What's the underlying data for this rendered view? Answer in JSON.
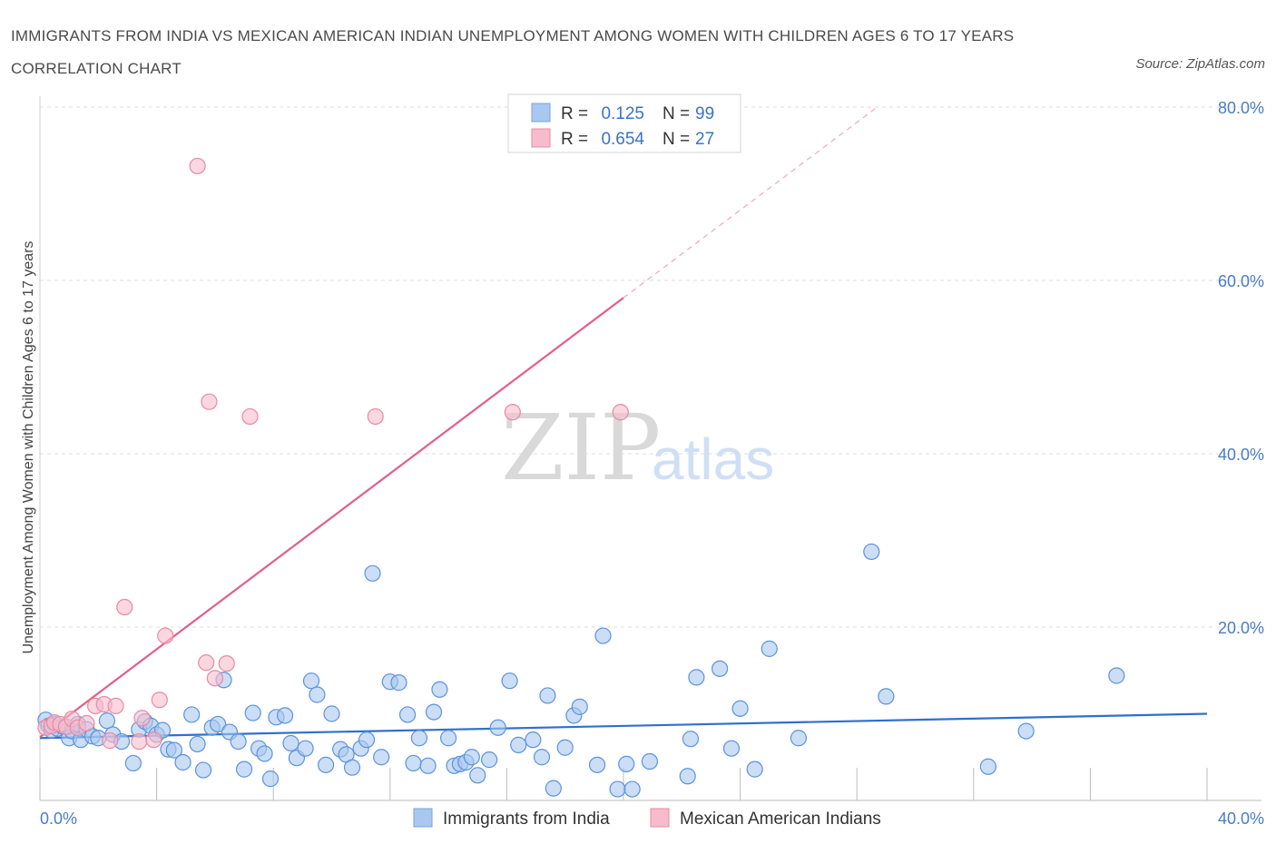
{
  "title": "IMMIGRANTS FROM INDIA VS MEXICAN AMERICAN INDIAN UNEMPLOYMENT AMONG WOMEN WITH CHILDREN AGES 6 TO 17 YEARS CORRELATION CHART",
  "source": "Source: ZipAtlas.com",
  "watermark": {
    "zip": "ZIP",
    "atlas": "atlas"
  },
  "legend": {
    "rows": [
      {
        "r_label": "R =",
        "r_value": "0.125",
        "n_label": "N =",
        "n_value": "99",
        "color": "#a9c8f0",
        "stroke": "#7aa3dc"
      },
      {
        "r_label": "R =",
        "r_value": "0.654",
        "n_label": "N =",
        "n_value": "27",
        "color": "#f6bccd",
        "stroke": "#e88aa6"
      }
    ]
  },
  "bottom_legend": [
    {
      "label": "Immigrants from India",
      "color": "#a9c8f0",
      "stroke": "#7aa3dc"
    },
    {
      "label": "Mexican American Indians",
      "color": "#f6bccd",
      "stroke": "#e88aa6"
    }
  ],
  "chart_data": {
    "type": "scatter",
    "xlabel": "",
    "ylabel": "Unemployment Among Women with Children Ages 6 to 17 years",
    "xlim": [
      0,
      40
    ],
    "ylim": [
      0,
      80
    ],
    "x_tick_labels": [
      "0.0%",
      "40.0%"
    ],
    "y_ticks": [
      20,
      40,
      60,
      80
    ],
    "y_tick_labels": [
      "20.0%",
      "40.0%",
      "60.0%",
      "80.0%"
    ],
    "grid": true,
    "series": [
      {
        "name": "Immigrants from India",
        "color": "#5b93dc",
        "fill": "#a9c8f0",
        "trend": {
          "x": [
            0,
            40
          ],
          "y": [
            7.2,
            10.0
          ],
          "color": "#2f6fcf"
        },
        "points": [
          [
            0.2,
            9.3
          ],
          [
            0.3,
            8.6
          ],
          [
            0.4,
            8.1
          ],
          [
            0.5,
            8.8
          ],
          [
            0.6,
            8.3
          ],
          [
            0.8,
            8.5
          ],
          [
            1.0,
            7.2
          ],
          [
            1.1,
            8.0
          ],
          [
            1.3,
            8.8
          ],
          [
            1.4,
            7.0
          ],
          [
            1.6,
            8.2
          ],
          [
            1.8,
            7.4
          ],
          [
            2.0,
            7.2
          ],
          [
            2.3,
            9.2
          ],
          [
            2.5,
            7.6
          ],
          [
            2.8,
            6.8
          ],
          [
            3.2,
            4.3
          ],
          [
            3.4,
            8.2
          ],
          [
            3.6,
            9.1
          ],
          [
            3.8,
            8.6
          ],
          [
            4.0,
            7.6
          ],
          [
            4.2,
            8.1
          ],
          [
            4.4,
            5.9
          ],
          [
            4.6,
            5.8
          ],
          [
            4.9,
            4.4
          ],
          [
            5.2,
            9.9
          ],
          [
            5.4,
            6.5
          ],
          [
            5.6,
            3.5
          ],
          [
            5.9,
            8.4
          ],
          [
            6.1,
            8.8
          ],
          [
            6.3,
            13.9
          ],
          [
            6.5,
            7.9
          ],
          [
            6.8,
            6.8
          ],
          [
            7.0,
            3.6
          ],
          [
            7.3,
            10.1
          ],
          [
            7.5,
            6.0
          ],
          [
            7.7,
            5.4
          ],
          [
            7.9,
            2.5
          ],
          [
            8.1,
            9.6
          ],
          [
            8.4,
            9.8
          ],
          [
            8.6,
            6.6
          ],
          [
            8.8,
            4.9
          ],
          [
            9.1,
            6.0
          ],
          [
            9.3,
            13.8
          ],
          [
            9.5,
            12.2
          ],
          [
            9.8,
            4.1
          ],
          [
            10.0,
            10.0
          ],
          [
            10.3,
            5.9
          ],
          [
            10.5,
            5.3
          ],
          [
            10.7,
            3.8
          ],
          [
            11.0,
            6.0
          ],
          [
            11.2,
            7.0
          ],
          [
            11.4,
            26.2
          ],
          [
            11.7,
            5.0
          ],
          [
            12.0,
            13.7
          ],
          [
            12.3,
            13.6
          ],
          [
            12.6,
            9.9
          ],
          [
            12.8,
            4.3
          ],
          [
            13.0,
            7.2
          ],
          [
            13.3,
            4.0
          ],
          [
            13.5,
            10.2
          ],
          [
            13.7,
            12.8
          ],
          [
            14.0,
            7.2
          ],
          [
            14.2,
            4.0
          ],
          [
            14.4,
            4.2
          ],
          [
            14.6,
            4.4
          ],
          [
            14.8,
            5.0
          ],
          [
            15.0,
            2.9
          ],
          [
            15.4,
            4.7
          ],
          [
            15.7,
            8.4
          ],
          [
            16.1,
            13.8
          ],
          [
            16.4,
            6.4
          ],
          [
            16.9,
            7.0
          ],
          [
            17.2,
            5.0
          ],
          [
            17.4,
            12.1
          ],
          [
            17.6,
            1.4
          ],
          [
            18.0,
            6.1
          ],
          [
            18.3,
            9.8
          ],
          [
            18.5,
            10.8
          ],
          [
            19.1,
            4.1
          ],
          [
            19.3,
            19.0
          ],
          [
            19.8,
            1.3
          ],
          [
            20.1,
            4.2
          ],
          [
            20.3,
            1.3
          ],
          [
            20.9,
            4.5
          ],
          [
            22.2,
            2.8
          ],
          [
            22.3,
            7.1
          ],
          [
            22.5,
            14.2
          ],
          [
            23.3,
            15.2
          ],
          [
            23.7,
            6.0
          ],
          [
            24.0,
            10.6
          ],
          [
            24.5,
            3.6
          ],
          [
            25.0,
            17.5
          ],
          [
            26.0,
            7.2
          ],
          [
            28.5,
            28.7
          ],
          [
            29.0,
            12.0
          ],
          [
            32.5,
            3.9
          ],
          [
            33.8,
            8.0
          ],
          [
            36.9,
            14.4
          ]
        ]
      },
      {
        "name": "Mexican American Indians",
        "color": "#e88aa6",
        "fill": "#f6bccd",
        "trend": {
          "x": [
            0,
            20
          ],
          "y": [
            7.3,
            58.0
          ],
          "color": "#e05f8a",
          "extend_x": [
            20,
            28.7
          ],
          "extend_y": [
            58.0,
            80.0
          ]
        },
        "points": [
          [
            0.2,
            8.4
          ],
          [
            0.4,
            8.6
          ],
          [
            0.5,
            9.0
          ],
          [
            0.7,
            8.8
          ],
          [
            0.9,
            8.5
          ],
          [
            1.1,
            9.4
          ],
          [
            1.3,
            8.4
          ],
          [
            1.6,
            8.9
          ],
          [
            1.9,
            10.9
          ],
          [
            2.2,
            11.1
          ],
          [
            2.4,
            6.9
          ],
          [
            2.6,
            10.9
          ],
          [
            2.9,
            22.3
          ],
          [
            3.4,
            6.8
          ],
          [
            3.5,
            9.5
          ],
          [
            3.9,
            7.0
          ],
          [
            4.1,
            11.6
          ],
          [
            4.3,
            19.0
          ],
          [
            5.4,
            73.2
          ],
          [
            5.7,
            15.9
          ],
          [
            5.8,
            46.0
          ],
          [
            6.0,
            14.1
          ],
          [
            6.4,
            15.8
          ],
          [
            7.2,
            44.3
          ],
          [
            11.5,
            44.3
          ],
          [
            16.2,
            44.8
          ],
          [
            19.9,
            44.8
          ]
        ]
      }
    ]
  }
}
